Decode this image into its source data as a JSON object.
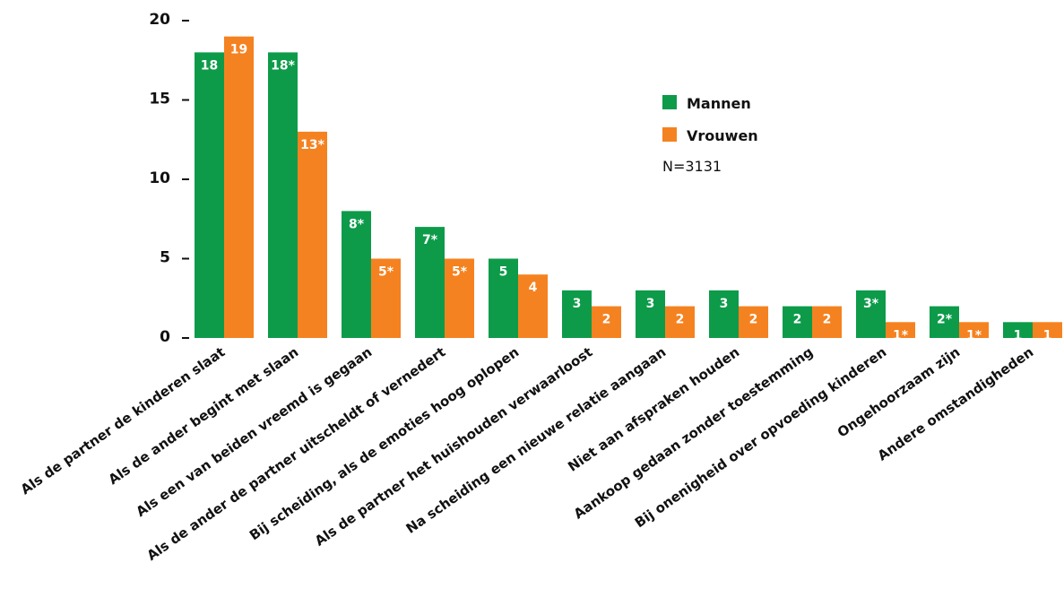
{
  "chart_data": {
    "type": "bar",
    "categories": [
      "Als de partner de kinderen slaat",
      "Als de ander begint met slaan",
      "Als een van beiden vreemd is gegaan",
      "Als de ander de partner uitscheldt of vernedert",
      "Bij scheiding, als de emoties hoog oplopen",
      "Als de partner het huishouden verwaarloost",
      "Na scheiding een nieuwe relatie aangaan",
      "Niet aan afspraken houden",
      "Aankoop gedaan zonder toestemming",
      "Bij onenigheid over opvoeding kinderen",
      "Ongehoorzaam zijn",
      "Andere omstandigheden"
    ],
    "series": [
      {
        "name": "Mannen",
        "color": "#0d9b4a",
        "values": [
          18,
          18,
          8,
          7,
          5,
          3,
          3,
          3,
          2,
          3,
          2,
          1
        ],
        "labels": [
          "18",
          "18*",
          "8*",
          "7*",
          "5",
          "3",
          "3",
          "3",
          "2",
          "3*",
          "2*",
          "1"
        ]
      },
      {
        "name": "Vrouwen",
        "color": "#f58220",
        "values": [
          19,
          13,
          5,
          5,
          4,
          2,
          2,
          2,
          2,
          1,
          1,
          1
        ],
        "labels": [
          "19",
          "13*",
          "5*",
          "5*",
          "4",
          "2",
          "2",
          "2",
          "2",
          "1*",
          "1*",
          "1"
        ]
      }
    ],
    "yticks": [
      "0",
      "5",
      "10",
      "15",
      "20"
    ],
    "ylim": [
      0,
      20
    ],
    "note": "N=3131",
    "legend_position": "top-right",
    "grid": false
  }
}
